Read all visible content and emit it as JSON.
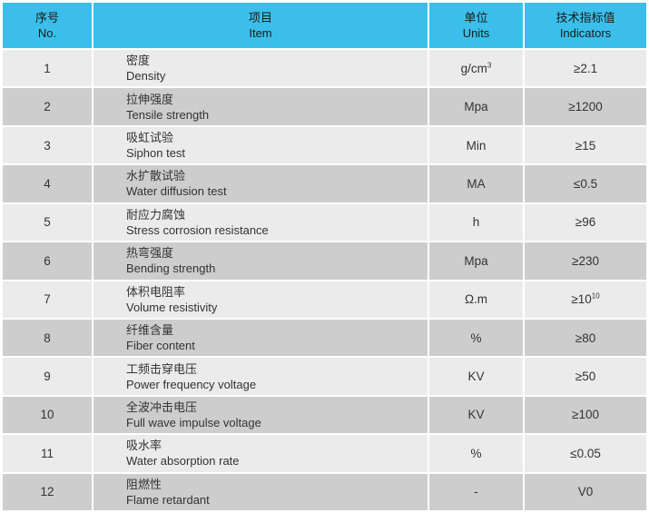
{
  "colors": {
    "header_bg": "#3bbfea",
    "row_odd_bg": "#ebebeb",
    "row_even_bg": "#cdcdcd",
    "grid_line": "#ffffff",
    "header_text": "#1a1a1a",
    "body_text": "#333333"
  },
  "table": {
    "headers": {
      "no_zh": "序号",
      "no_en": "No.",
      "item_zh": "项目",
      "item_en": "Item",
      "unit_zh": "单位",
      "unit_en": "Units",
      "ind_zh": "技术指标值",
      "ind_en": "Indicators"
    },
    "rows": [
      {
        "no": "1",
        "item_zh": "密度",
        "item_en": "Density",
        "unit": "g/cm",
        "unit_sup": "3",
        "ind": "≥2.1",
        "ind_sup": ""
      },
      {
        "no": "2",
        "item_zh": "拉伸强度",
        "item_en": "Tensile strength",
        "unit": "Mpa",
        "unit_sup": "",
        "ind": "≥1200",
        "ind_sup": ""
      },
      {
        "no": "3",
        "item_zh": "吸虹试验",
        "item_en": "Siphon test",
        "unit": "Min",
        "unit_sup": "",
        "ind": "≥15",
        "ind_sup": ""
      },
      {
        "no": "4",
        "item_zh": "水扩散试验",
        "item_en": "Water diffusion test",
        "unit": "MA",
        "unit_sup": "",
        "ind": "≤0.5",
        "ind_sup": ""
      },
      {
        "no": "5",
        "item_zh": "耐应力腐蚀",
        "item_en": "Stress corrosion resistance",
        "unit": "h",
        "unit_sup": "",
        "ind": "≥96",
        "ind_sup": ""
      },
      {
        "no": "6",
        "item_zh": "热弯强度",
        "item_en": "Bending strength",
        "unit": "Mpa",
        "unit_sup": "",
        "ind": "≥230",
        "ind_sup": ""
      },
      {
        "no": "7",
        "item_zh": "体积电阻率",
        "item_en": "Volume resistivity",
        "unit": "Ω.m",
        "unit_sup": "",
        "ind": "≥10",
        "ind_sup": "10"
      },
      {
        "no": "8",
        "item_zh": "纤维含量",
        "item_en": "Fiber content",
        "unit": "%",
        "unit_sup": "",
        "ind": "≥80",
        "ind_sup": ""
      },
      {
        "no": "9",
        "item_zh": "工频击穿电压",
        "item_en": "Power frequency voltage",
        "unit": "KV",
        "unit_sup": "",
        "ind": "≥50",
        "ind_sup": ""
      },
      {
        "no": "10",
        "item_zh": "全波冲击电压",
        "item_en": "Full wave impulse voltage",
        "unit": "KV",
        "unit_sup": "",
        "ind": "≥100",
        "ind_sup": ""
      },
      {
        "no": "11",
        "item_zh": "吸水率",
        "item_en": "Water absorption rate",
        "unit": "%",
        "unit_sup": "",
        "ind": "≤0.05",
        "ind_sup": ""
      },
      {
        "no": "12",
        "item_zh": "阻燃性",
        "item_en": "Flame retardant",
        "unit": "-",
        "unit_sup": "",
        "ind": "V0",
        "ind_sup": ""
      }
    ]
  }
}
